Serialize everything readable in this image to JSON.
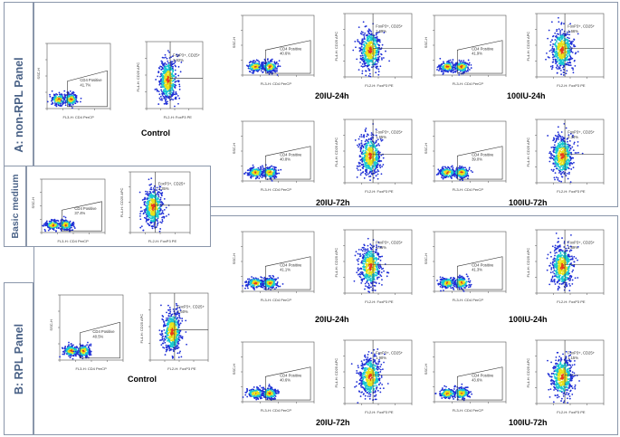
{
  "panels": {
    "non_rpl": "A: non-RPL Panel",
    "basic": "Basic medium",
    "rpl": "B: RPL Panel"
  },
  "axis_labels": {
    "ssc": "SSC-H",
    "cd4_x": "FL3-H: CD4 PerCP",
    "cd25_y": "FL4-H: CD25 APC",
    "foxp3_x": "FL2-H: FoxP3 PE"
  },
  "gate_labels": {
    "cd4": "CD4 Positive",
    "foxp3": "FoxP3+, CD25+"
  },
  "groups": {
    "a_control": {
      "caption": "Control",
      "cd4_pct": "41.7%",
      "foxp3_pct": "2.82%"
    },
    "a_20_24": {
      "caption": "20IU-24h",
      "cd4_pct": "40.6%",
      "foxp3_pct": "1.69%"
    },
    "a_100_24": {
      "caption": "100IU-24h",
      "cd4_pct": "41.9%",
      "foxp3_pct": "1.66%"
    },
    "a_20_72": {
      "caption": "20IU-72h",
      "cd4_pct": "40.8%",
      "foxp3_pct": "1.55%"
    },
    "a_100_72": {
      "caption": "100IU-72h",
      "cd4_pct": "39.0%",
      "foxp3_pct": "2.34%"
    },
    "basic": {
      "caption": "",
      "cd4_pct": "37.4%",
      "foxp3_pct": "3.35%"
    },
    "b_control": {
      "caption": "Control",
      "cd4_pct": "40.5%",
      "foxp3_pct": "1.60%"
    },
    "b_20_24": {
      "caption": "20IU-24h",
      "cd4_pct": "41.1%",
      "foxp3_pct": "1.45%"
    },
    "b_100_24": {
      "caption": "100IU-24h",
      "cd4_pct": "41.3%",
      "foxp3_pct": "1.89%"
    },
    "b_20_72": {
      "caption": "20IU-72h",
      "cd4_pct": "40.6%",
      "foxp3_pct": "1.90%"
    },
    "b_100_72": {
      "caption": "100IU-72h",
      "cd4_pct": "43.6%",
      "foxp3_pct": "1.15%"
    }
  },
  "colors": {
    "border": "#8a96aa",
    "panel_text": "#4a6287",
    "density_low": "#1f2fd6",
    "density_mid": "#19c8d0",
    "density_high": "#e9e21a",
    "density_peak": "#e8391a"
  }
}
